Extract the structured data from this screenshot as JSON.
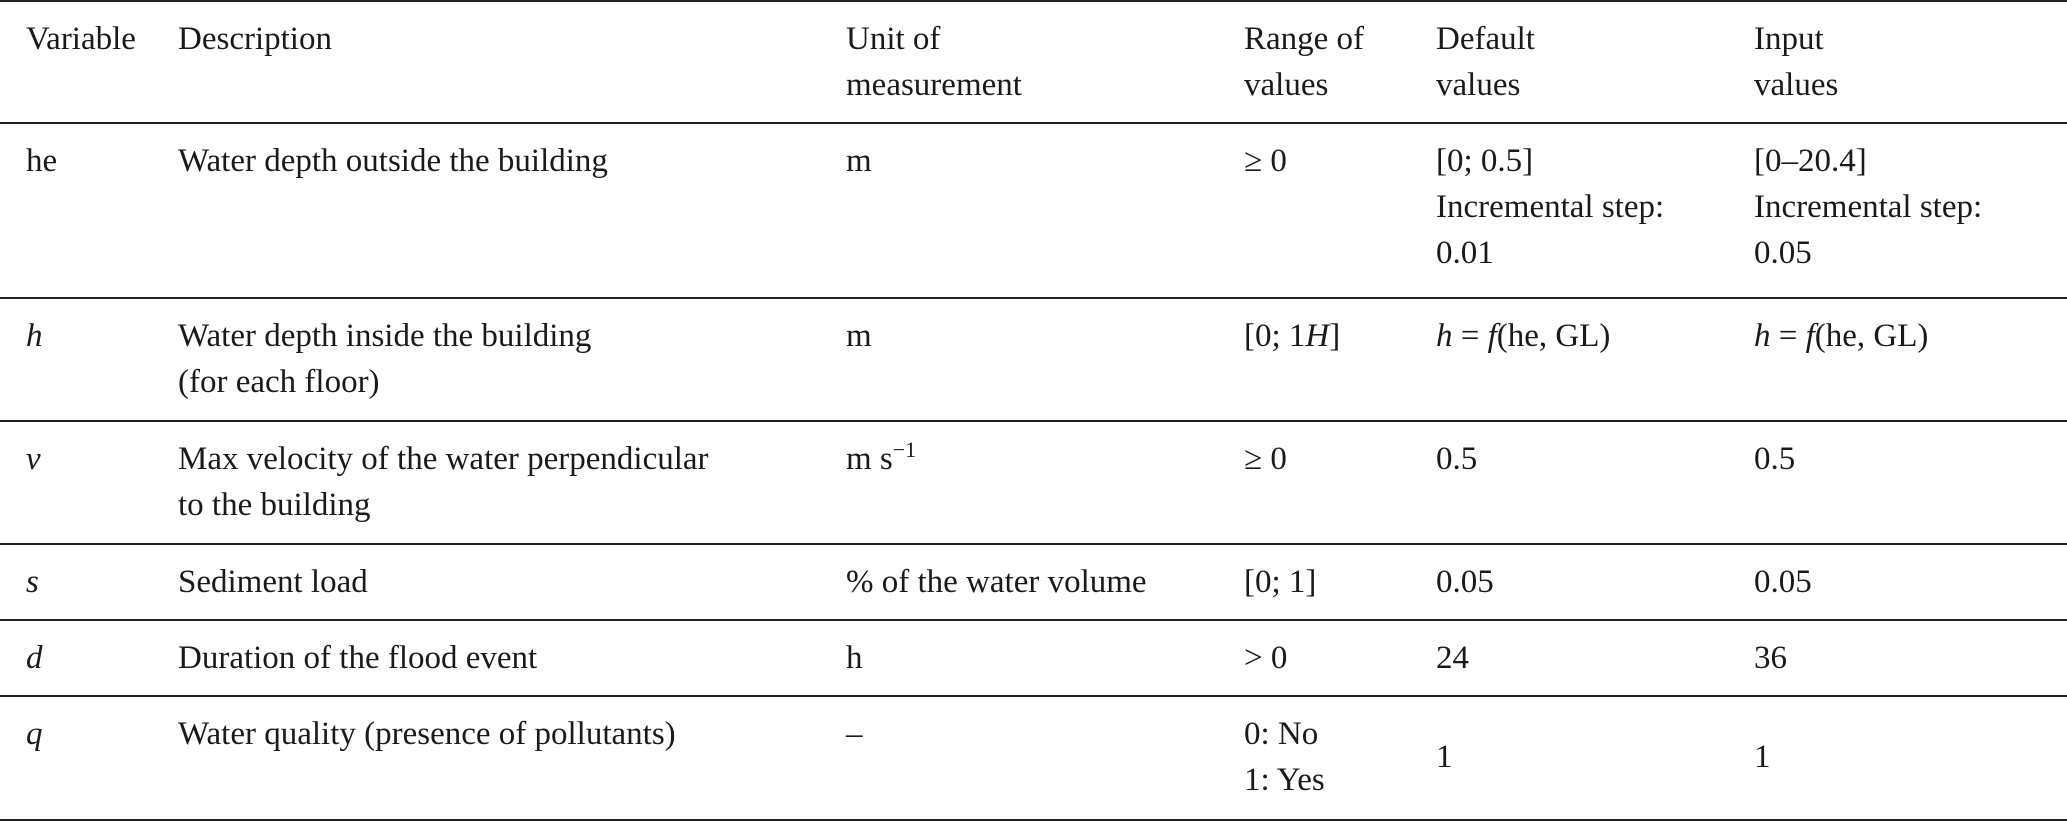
{
  "table": {
    "headers": {
      "variable": "Variable",
      "description": "Description",
      "unit": "Unit of\nmeasurement",
      "range": "Range of\nvalues",
      "default": "Default\nvalues",
      "input": "Input\nvalues"
    },
    "rows": [
      {
        "variable": "he",
        "description": "Water depth outside the building",
        "unit": "m",
        "range": "≥ 0",
        "default": "[0; 0.5]\nIncremental step:\n0.01",
        "input": "[0–20.4]\nIncremental step:\n0.05"
      },
      {
        "variable": "h",
        "description": "Water depth inside the building\n(for each floor)",
        "unit": "m",
        "range_prefix": "[0; 1",
        "range_var": "H",
        "range_suffix": "]",
        "default_var": "h",
        "default_eq": " = ",
        "default_fn": "f",
        "default_args": "(he, GL)",
        "input_var": "h",
        "input_eq": " = ",
        "input_fn": "f",
        "input_args": "(he, GL)"
      },
      {
        "variable": "v",
        "description": "Max velocity of the water perpendicular\nto the building",
        "unit_base": "m s",
        "unit_sup": "−1",
        "range": "≥ 0",
        "default": "0.5",
        "input": "0.5"
      },
      {
        "variable": "s",
        "description": "Sediment load",
        "unit": "% of the water volume",
        "range": "[0; 1]",
        "default": "0.05",
        "input": "0.05"
      },
      {
        "variable": "d",
        "description": "Duration of the flood event",
        "unit": "h",
        "range": "> 0",
        "default": "24",
        "input": "36"
      },
      {
        "variable": "q",
        "description": "Water quality (presence of pollutants)",
        "unit": "–",
        "range": "0: No\n1: Yes",
        "default": "1",
        "input": "1"
      }
    ]
  }
}
